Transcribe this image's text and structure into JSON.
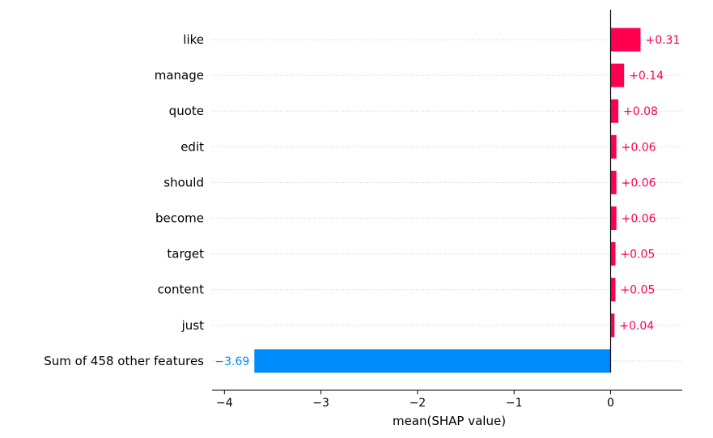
{
  "chart_data": {
    "type": "bar",
    "orientation": "horizontal",
    "categories": [
      "like",
      "manage",
      "quote",
      "edit",
      "should",
      "become",
      "target",
      "content",
      "just",
      "Sum of 458 other features"
    ],
    "values": [
      0.31,
      0.14,
      0.08,
      0.06,
      0.06,
      0.06,
      0.05,
      0.05,
      0.04,
      -3.69
    ],
    "value_labels": [
      "+0.31",
      "+0.14",
      "+0.08",
      "+0.06",
      "+0.06",
      "+0.06",
      "+0.05",
      "+0.05",
      "+0.04",
      "−3.69"
    ],
    "title": "",
    "xlabel": "mean(SHAP value)",
    "ylabel": "",
    "xlim": [
      -4.18,
      0.75
    ],
    "xticks": [
      -4,
      -3,
      -2,
      -1,
      0
    ],
    "xtick_labels": [
      "−4",
      "−3",
      "−2",
      "−1",
      "0"
    ],
    "grid": "horizontal dotted",
    "legend": "none",
    "colors": {
      "positive": "#ff0051",
      "negative": "#008bfb",
      "axis": "#000000",
      "grid": "#cccccc"
    }
  }
}
